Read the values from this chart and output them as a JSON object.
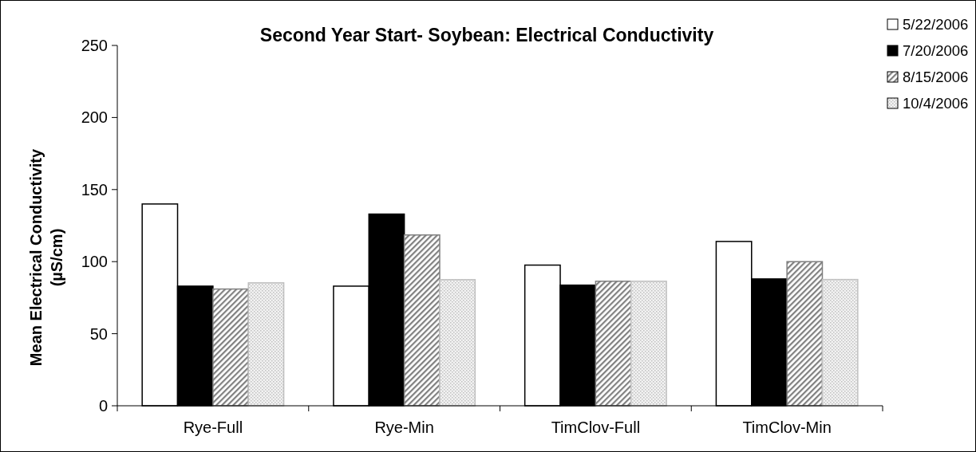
{
  "chart_data": {
    "type": "bar",
    "title": "Second Year Start- Soybean: Electrical Conductivity",
    "ylabel": "Mean Electrical Conductivity\n(µS/cm)",
    "categories": [
      "Rye-Full",
      "Rye-Min",
      "TimClov-Full",
      "TimClov-Min"
    ],
    "series": [
      {
        "name": "5/22/2006",
        "color": "#ffffff",
        "values": [
          140,
          83,
          97.6,
          114
        ]
      },
      {
        "name": "7/20/2006",
        "color": "#000000",
        "values": [
          83,
          133,
          83.7,
          88
        ]
      },
      {
        "name": "8/15/2006",
        "color": "#808080",
        "values": [
          81,
          118.5,
          86.4,
          100
        ]
      },
      {
        "name": "10/4/2006",
        "color": "#c0c0c0",
        "values": [
          85.3,
          87.5,
          86.4,
          87.6
        ]
      }
    ],
    "ylim": [
      0,
      250
    ],
    "yticks": [
      0,
      50,
      100,
      150,
      200,
      250
    ],
    "grid": false,
    "legend": "top right"
  }
}
